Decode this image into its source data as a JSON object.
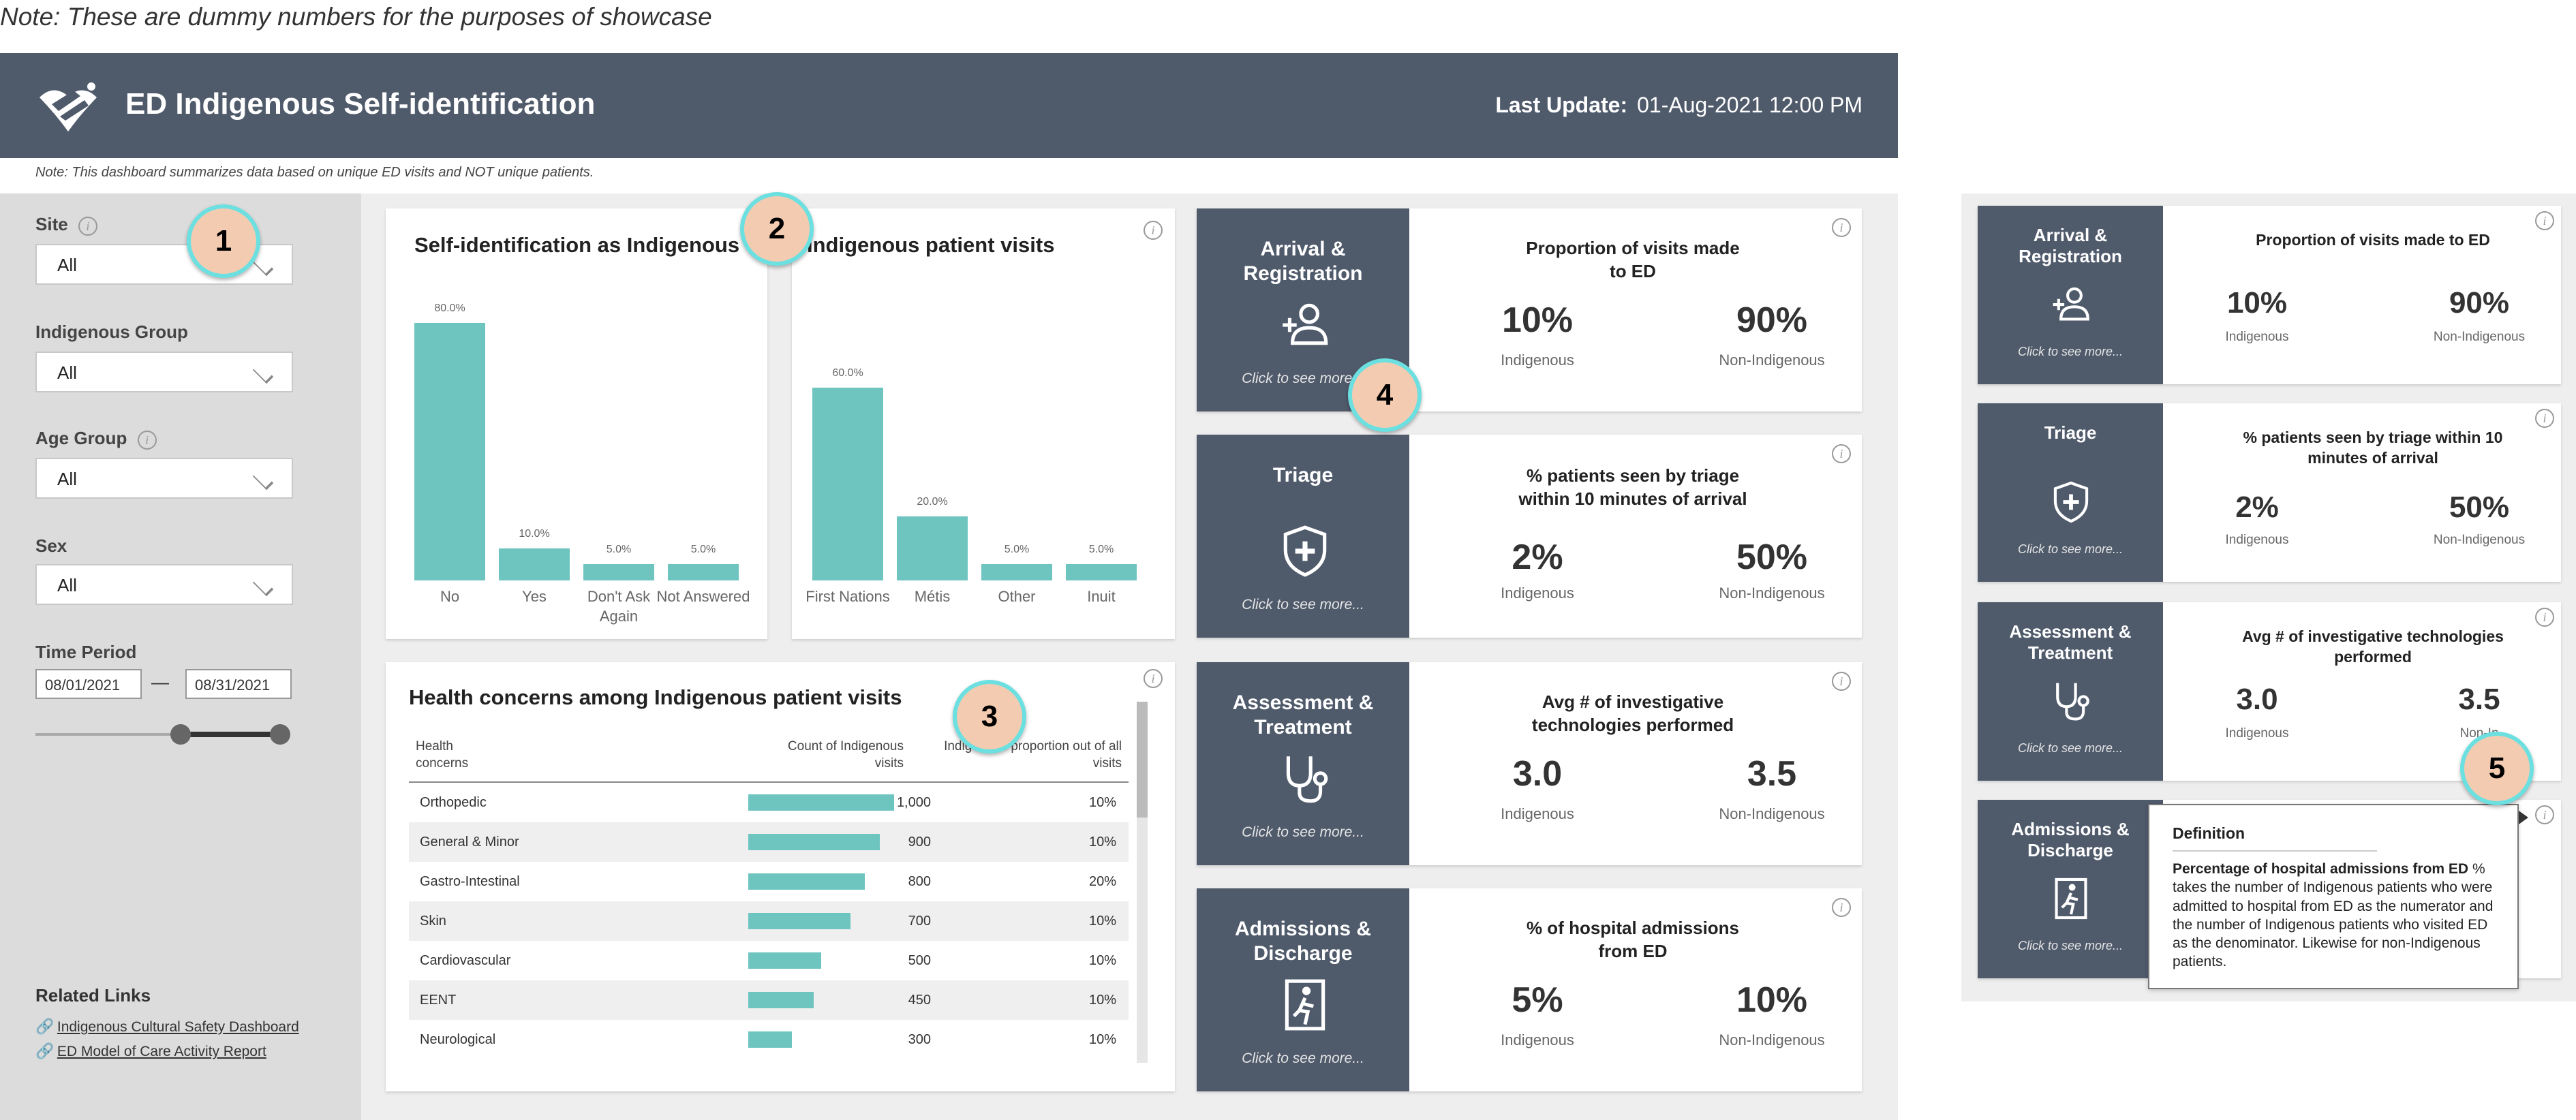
{
  "top_note": "Note: These are dummy numbers for the purposes of showcase",
  "header": {
    "title": "ED Indigenous Self-identification",
    "last_update_label": "Last Update:",
    "last_update_value": "01-Aug-2021 12:00 PM"
  },
  "sub_note": "Note: This dashboard summarizes data based on unique ED visits and NOT unique patients.",
  "filters": {
    "site_label": "Site",
    "site_value": "All",
    "group_label": "Indigenous Group",
    "group_value": "All",
    "age_label": "Age Group",
    "age_value": "All",
    "sex_label": "Sex",
    "sex_value": "All",
    "time_label": "Time Period",
    "date_from": "08/01/2021",
    "date_sep": "—",
    "date_to": "08/31/2021"
  },
  "related": {
    "title": "Related Links",
    "links": [
      "Indigenous Cultural Safety Dashboard",
      "ED Model of Care Activity Report"
    ]
  },
  "badges": [
    "1",
    "2",
    "3",
    "4",
    "5"
  ],
  "chart_data": [
    {
      "type": "bar",
      "title": "Self-identification as Indigenous",
      "categories": [
        "No",
        "Yes",
        "Don't Ask Again",
        "Not Answered"
      ],
      "values": [
        80.0,
        10.0,
        5.0,
        5.0
      ],
      "value_labels": [
        "80.0%",
        "10.0%",
        "5.0%",
        "5.0%"
      ],
      "ylim": [
        0,
        80
      ]
    },
    {
      "type": "bar",
      "title": "Indigenous patient visits",
      "categories": [
        "First Nations",
        "Métis",
        "Other",
        "Inuit"
      ],
      "values": [
        60.0,
        20.0,
        5.0,
        5.0
      ],
      "value_labels": [
        "60.0%",
        "20.0%",
        "5.0%",
        "5.0%"
      ],
      "ylim": [
        0,
        80
      ]
    },
    {
      "type": "table",
      "title": "Health concerns among Indigenous patient visits",
      "columns": [
        "Health concerns",
        "Count of Indigenous visits",
        "Indigenous proportion out of all visits"
      ],
      "rows": [
        {
          "concern": "Orthopedic",
          "count": 1000,
          "count_label": "1,000",
          "proportion": "10%"
        },
        {
          "concern": "General & Minor",
          "count": 900,
          "count_label": "900",
          "proportion": "10%"
        },
        {
          "concern": "Gastro-Intestinal",
          "count": 800,
          "count_label": "800",
          "proportion": "20%"
        },
        {
          "concern": "Skin",
          "count": 700,
          "count_label": "700",
          "proportion": "10%"
        },
        {
          "concern": "Cardiovascular",
          "count": 500,
          "count_label": "500",
          "proportion": "10%"
        },
        {
          "concern": "EENT",
          "count": 450,
          "count_label": "450",
          "proportion": "10%"
        },
        {
          "concern": "Neurological",
          "count": 300,
          "count_label": "300",
          "proportion": "10%"
        }
      ],
      "max_count": 1000
    }
  ],
  "kpis": [
    {
      "name": "Arrival & Registration",
      "click": "Click to see more...",
      "metric": "Proportion of visits made to ED",
      "v1": "10%",
      "l1": "Indigenous",
      "v2": "90%",
      "l2": "Non-Indigenous",
      "icon": "add-person-icon"
    },
    {
      "name": "Triage",
      "click": "Click to see more...",
      "metric": "% patients seen by triage within 10 minutes of arrival",
      "v1": "2%",
      "l1": "Indigenous",
      "v2": "50%",
      "l2": "Non-Indigenous",
      "icon": "shield-plus-icon"
    },
    {
      "name": "Assessment & Treatment",
      "click": "Click to see more...",
      "metric": "Avg # of investigative technologies performed",
      "v1": "3.0",
      "l1": "Indigenous",
      "v2": "3.5",
      "l2": "Non-Indigenous",
      "icon": "stethoscope-icon"
    },
    {
      "name": "Admissions & Discharge",
      "click": "Click to see more...",
      "metric": "% of hospital admissions from ED",
      "v1": "5%",
      "l1": "Indigenous",
      "v2": "10%",
      "l2": "Non-Indigenous",
      "icon": "exit-door-icon"
    }
  ],
  "side_kpis": [
    {
      "name": "Arrival & Registration",
      "click": "Click to see more...",
      "metric": "Proportion of visits made to ED",
      "v1": "10%",
      "l1": "Indigenous",
      "v2": "90%",
      "l2": "Non-Indigenous"
    },
    {
      "name": "Triage",
      "click": "Click to see more...",
      "metric": "% patients seen by triage within 10 minutes of arrival",
      "v1": "2%",
      "l1": "Indigenous",
      "v2": "50%",
      "l2": "Non-Indigenous"
    },
    {
      "name": "Assessment & Treatment",
      "click": "Click to see more...",
      "metric": "Avg # of investigative technologies performed",
      "v1": "3.0",
      "l1": "Indigenous",
      "v2": "3.5",
      "l2": "Non-In"
    },
    {
      "name": "Admissions & Discharge",
      "click": "Click to see more..."
    }
  ],
  "tooltip": {
    "title": "Definition",
    "bold": "Percentage of hospital admissions from ED",
    "text": " % takes the number of Indigenous patients who were admitted to hospital from ED as the numerator and the number of Indigenous patients who visited ED as the denominator. Likewise for non-Indigenous patients."
  },
  "colors": {
    "header": "#4f5a6b",
    "bar": "#6ec5c0",
    "badge": "#f3cbb1",
    "badge_ring": "#6ce0e0"
  }
}
